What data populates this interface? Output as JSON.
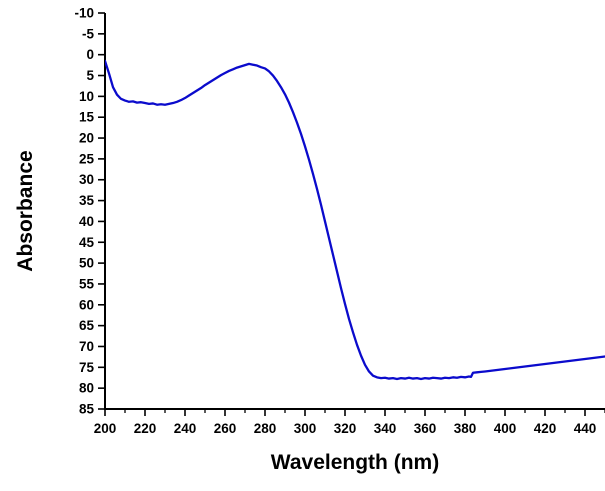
{
  "chart_data": {
    "type": "line",
    "title": "",
    "xlabel": "Wavelength (nm)",
    "ylabel": "Absorbance",
    "xlim": [
      200,
      450
    ],
    "ylim": [
      -10,
      85
    ],
    "y_axis_inverted": true,
    "grid": false,
    "legend": "none",
    "background_color": "#ffffff",
    "axis_color": "#000000",
    "line_color": "#0b0bcc",
    "x_major_ticks": [
      200,
      220,
      240,
      260,
      280,
      300,
      320,
      340,
      360,
      380,
      400,
      420,
      440
    ],
    "x_minor_ticks": [
      210,
      230,
      250,
      270,
      290,
      310,
      330,
      350,
      370,
      390,
      410,
      430,
      450
    ],
    "y_major_ticks": [
      -10,
      -5,
      0,
      5,
      10,
      15,
      20,
      25,
      30,
      35,
      40,
      45,
      50,
      55,
      60,
      65,
      70,
      75,
      80,
      85
    ],
    "series": [
      {
        "name": "absorbance",
        "x": [
          200,
          202,
          204,
          206,
          208,
          210,
          212,
          214,
          216,
          218,
          220,
          222,
          224,
          226,
          228,
          230,
          232,
          234,
          236,
          238,
          240,
          242,
          244,
          246,
          248,
          250,
          252,
          254,
          256,
          258,
          260,
          262,
          264,
          266,
          268,
          270,
          272,
          274,
          276,
          278,
          280,
          282,
          284,
          286,
          288,
          290,
          292,
          294,
          296,
          298,
          300,
          302,
          304,
          306,
          308,
          310,
          312,
          314,
          316,
          318,
          320,
          322,
          324,
          326,
          328,
          330,
          332,
          334,
          336,
          338,
          340,
          342,
          344,
          346,
          348,
          350,
          352,
          354,
          356,
          358,
          360,
          362,
          364,
          366,
          368,
          370,
          372,
          374,
          376,
          378,
          380,
          382,
          383,
          384,
          386,
          388,
          390,
          395,
          400,
          405,
          410,
          415,
          420,
          425,
          430,
          435,
          440,
          445,
          450
        ],
        "y": [
          1.5,
          4.5,
          7.8,
          9.6,
          10.6,
          11.0,
          11.3,
          11.2,
          11.5,
          11.4,
          11.6,
          11.8,
          11.7,
          12.0,
          11.9,
          12.0,
          11.8,
          11.6,
          11.3,
          10.9,
          10.4,
          9.8,
          9.2,
          8.6,
          8.0,
          7.3,
          6.7,
          6.1,
          5.5,
          4.9,
          4.4,
          3.9,
          3.5,
          3.1,
          2.8,
          2.5,
          2.2,
          2.4,
          2.6,
          3.0,
          3.3,
          4.0,
          5.0,
          6.3,
          7.8,
          9.5,
          11.5,
          13.8,
          16.3,
          19.0,
          22.0,
          25.2,
          28.6,
          32.2,
          36.0,
          40.0,
          44.0,
          48.0,
          52.0,
          56.0,
          59.8,
          63.4,
          66.6,
          69.6,
          72.2,
          74.4,
          76.0,
          77.0,
          77.4,
          77.6,
          77.5,
          77.7,
          77.6,
          77.8,
          77.6,
          77.7,
          77.5,
          77.7,
          77.6,
          77.8,
          77.6,
          77.7,
          77.5,
          77.6,
          77.7,
          77.5,
          77.6,
          77.4,
          77.5,
          77.3,
          77.4,
          77.2,
          77.3,
          76.3,
          76.2,
          76.1,
          76.0,
          75.7,
          75.4,
          75.1,
          74.8,
          74.5,
          74.2,
          73.9,
          73.6,
          73.3,
          73.0,
          72.7,
          72.4
        ]
      }
    ]
  }
}
